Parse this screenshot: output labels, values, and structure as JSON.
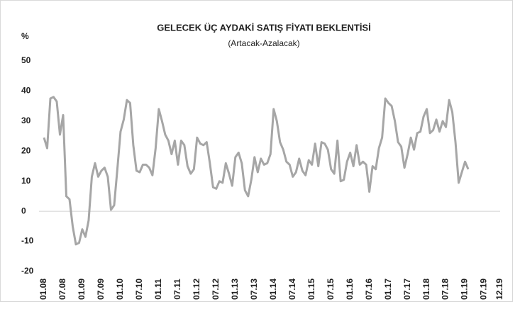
{
  "chart_data": {
    "type": "line",
    "title": "GELECEK ÜÇ AYDAKİ SATIŞ FİYATI BEKLENTİSİ",
    "subtitle": "(Artacak-Azalacak)",
    "y_label": "%",
    "categories": [
      "01.08",
      null,
      null,
      null,
      null,
      null,
      "07.08",
      null,
      null,
      null,
      null,
      null,
      "01.09",
      null,
      null,
      null,
      null,
      null,
      "07.09",
      null,
      null,
      null,
      null,
      null,
      "01.10",
      null,
      null,
      null,
      null,
      null,
      "07.10",
      null,
      null,
      null,
      null,
      null,
      "01.11",
      null,
      null,
      null,
      null,
      null,
      "07.11",
      null,
      null,
      null,
      null,
      null,
      "01.12",
      null,
      null,
      null,
      null,
      null,
      "07.12",
      null,
      null,
      null,
      null,
      null,
      "01.13",
      null,
      null,
      null,
      null,
      null,
      "07.13",
      null,
      null,
      null,
      null,
      null,
      "01.14",
      null,
      null,
      null,
      null,
      null,
      "07.14",
      null,
      null,
      null,
      null,
      null,
      "01.15",
      null,
      null,
      null,
      null,
      null,
      "07.15",
      null,
      null,
      null,
      null,
      null,
      "01.16",
      null,
      null,
      null,
      null,
      null,
      "07.16",
      null,
      null,
      null,
      null,
      null,
      "01.17",
      null,
      null,
      null,
      null,
      null,
      "07.17",
      null,
      null,
      null,
      null,
      null,
      "01.18",
      null,
      null,
      null,
      null,
      null,
      "07.18",
      null,
      null,
      null,
      null,
      null,
      "01.19",
      null,
      null,
      null,
      null,
      null,
      "07.19",
      null,
      null,
      null,
      null,
      "12.19"
    ],
    "series": [
      {
        "color": "#a6a6a6",
        "values": [
          24.5,
          21,
          37.5,
          38,
          36.5,
          25.5,
          32,
          5,
          4,
          -5,
          -11,
          -10.5,
          -6,
          -8.5,
          -3,
          11.5,
          16,
          11.5,
          13.5,
          14.5,
          11.5,
          0.5,
          2,
          14,
          26.5,
          30.5,
          37,
          36,
          22,
          13.5,
          13,
          15.5,
          15.5,
          14.5,
          12,
          21,
          34,
          30,
          25.5,
          23.5,
          19,
          23.5,
          15.5,
          23.5,
          22,
          15,
          12.5,
          14,
          24.5,
          22.5,
          22,
          23,
          16,
          8,
          7.5,
          10,
          9.5,
          16,
          12.5,
          8.5,
          18,
          19.5,
          16,
          7,
          5,
          10.5,
          18,
          13,
          17.5,
          15.5,
          16,
          19,
          34,
          30,
          23,
          20.5,
          16.5,
          15.5,
          11.5,
          13,
          17.5,
          13.5,
          12,
          17,
          15.5,
          22.5,
          15,
          23,
          22.5,
          20.5,
          14,
          12.5,
          23.5,
          10,
          10.5,
          16.5,
          19.5,
          15,
          22,
          15.5,
          16.5,
          15.5,
          6.5,
          15,
          14,
          21,
          24.5,
          37.5,
          36,
          35,
          30,
          23,
          21.5,
          14.5,
          19,
          24.5,
          20.5,
          26,
          26.5,
          31.5,
          34,
          26,
          27,
          30.5,
          26.5,
          30,
          28,
          37,
          33,
          23,
          9.5,
          13,
          16.5,
          14,
          null,
          null,
          null,
          null,
          null,
          null,
          null,
          null,
          null,
          null
        ]
      }
    ],
    "ylim": [
      -20,
      50
    ],
    "yticks": [
      -20,
      -10,
      0,
      10,
      20,
      30,
      40,
      50
    ]
  }
}
